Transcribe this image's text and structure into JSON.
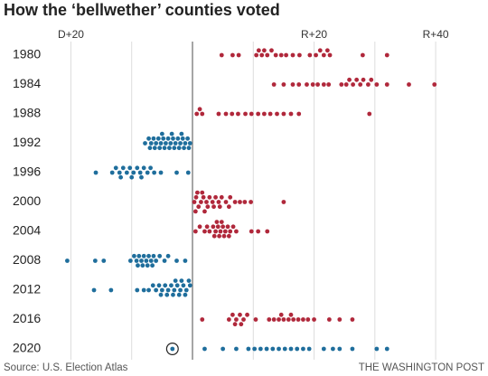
{
  "chart_data": {
    "type": "beeswarm",
    "title": "How the ‘bellwether’ counties voted",
    "source": "Source: U.S. Election Atlas",
    "credit": "THE WASHINGTON POST",
    "xlim": [
      -22,
      44
    ],
    "xticks": [
      {
        "value": -20,
        "label": "D+20"
      },
      {
        "value": 20,
        "label": "R+20"
      },
      {
        "value": 40,
        "label": "R+40"
      }
    ],
    "xgrid": [
      -20,
      -10,
      0,
      10,
      20,
      30,
      40
    ],
    "grid": true,
    "highlight": {
      "row": 10,
      "index": 0
    },
    "rows": [
      {
        "label": "1980",
        "color": "#b0283b",
        "values": [
          4.8,
          6.6,
          7.6,
          10.5,
          10.9,
          11.4,
          11.8,
          12.3,
          13,
          13.7,
          14.6,
          15.4,
          16.5,
          17.6,
          19.3,
          20.3,
          21,
          21.6,
          22.2,
          22.6,
          28,
          32
        ]
      },
      {
        "label": "1984",
        "color": "#b0283b",
        "values": [
          13.4,
          15,
          16.5,
          17.5,
          18.8,
          19.8,
          20.6,
          21.6,
          22.4,
          24.5,
          25.3,
          25.8,
          26.4,
          27,
          27.6,
          28.1,
          28.9,
          29.4,
          30.3,
          32,
          35.6,
          39.8
        ]
      },
      {
        "label": "1988",
        "color": "#b0283b",
        "values": [
          0.7,
          1.2,
          1.6,
          4.3,
          5.5,
          6.5,
          7.5,
          8.7,
          9.7,
          10.8,
          11.8,
          12.8,
          13.9,
          15,
          16.2,
          17.5,
          29.1
        ]
      },
      {
        "label": "1992",
        "color": "#1f6e9c",
        "values": [
          -7.8,
          -7.2,
          -6.8,
          -6.4,
          -6.0,
          -5.6,
          -5.2,
          -4.8,
          -4.4,
          -4.0,
          -3.6,
          -3.2,
          -2.8,
          -2.4,
          -2.0,
          -1.6,
          -1.2,
          -0.8,
          -0.4,
          -7.0,
          -6.2,
          -5.4,
          -4.6,
          -3.8,
          -3.0,
          -2.2,
          -1.4,
          -0.6,
          -5.0,
          -3.4,
          -1.8
        ]
      },
      {
        "label": "1996",
        "color": "#1f6e9c",
        "values": [
          -15.9,
          -13.2,
          -12.6,
          -12,
          -11.4,
          -10.8,
          -10.3,
          -9.7,
          -9.1,
          -8.6,
          -8,
          -7.4,
          -6.9,
          -6.3,
          -5.2,
          -2.6,
          -0.7,
          -11.8,
          -10.0,
          -8.4
        ]
      },
      {
        "label": "2000",
        "color": "#b0283b",
        "values": [
          0.3,
          0.6,
          1.0,
          1.4,
          1.8,
          2.3,
          2.8,
          3.3,
          3.8,
          4.3,
          4.8,
          5.5,
          6.2,
          7.0,
          7.8,
          8.6,
          9.6,
          15.0,
          0.8,
          1.6,
          2.5,
          3.5,
          4.5,
          6.0,
          0.5,
          2.0
        ]
      },
      {
        "label": "2004",
        "color": "#b0283b",
        "values": [
          0.5,
          1.2,
          2.0,
          2.8,
          3.4,
          3.8,
          4.2,
          4.6,
          5.0,
          5.4,
          5.8,
          6.2,
          6.7,
          7.2,
          3.6,
          4.4,
          5.2,
          6.0,
          4.0,
          4.8,
          9.7,
          10.8,
          12.3,
          2.4
        ]
      },
      {
        "label": "2008",
        "color": "#1f6e9c",
        "values": [
          -20.6,
          -16.0,
          -14.6,
          -10.2,
          -9.6,
          -9.2,
          -8.8,
          -8.4,
          -8.0,
          -7.6,
          -7.2,
          -6.8,
          -6.4,
          -6.0,
          -5.4,
          -4.6,
          -4.0,
          -9.0,
          -8.2,
          -7.4,
          -6.6,
          -2.6,
          -1.2
        ]
      },
      {
        "label": "2012",
        "color": "#1f6e9c",
        "values": [
          -16.2,
          -13.4,
          -9.1,
          -8.0,
          -7.2,
          -6.5,
          -6.0,
          -5.5,
          -5.0,
          -4.5,
          -4.0,
          -3.5,
          -3.0,
          -2.5,
          -2.0,
          -1.5,
          -1.0,
          -0.4,
          -4.2,
          -3.2,
          -2.2,
          -1.2,
          -0.6,
          -5.2,
          -2.8,
          -1.8
        ]
      },
      {
        "label": "2016",
        "color": "#b0283b",
        "values": [
          1.6,
          6.0,
          6.6,
          7.2,
          7.8,
          8.4,
          9.0,
          10.4,
          12.6,
          13.4,
          14.2,
          15.0,
          15.8,
          16.6,
          17.4,
          18.2,
          19.0,
          20.0,
          22.5,
          24.2,
          26.3,
          7.0,
          8.0,
          14.6,
          16.2
        ]
      },
      {
        "label": "2020",
        "color": "#1f6e9c",
        "values": [
          -3.3,
          2.0,
          5.0,
          7.2,
          9.2,
          10.2,
          11.2,
          12.2,
          13.2,
          14.2,
          15.2,
          16.2,
          17.2,
          18.2,
          19.2,
          21.6,
          23.1,
          24.2,
          26.3,
          30.3,
          32.0
        ]
      }
    ]
  }
}
